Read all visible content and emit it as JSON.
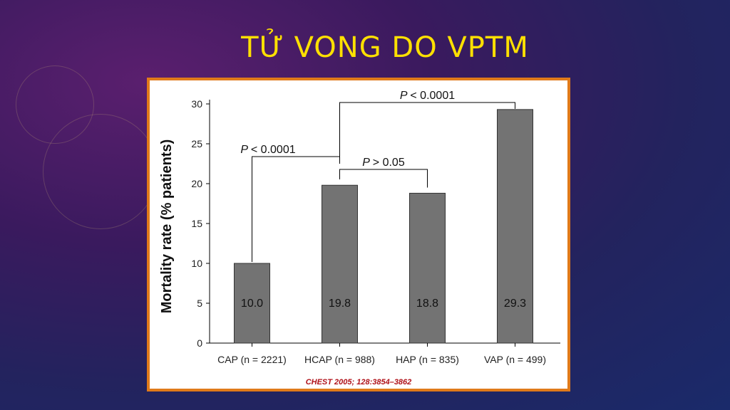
{
  "slide": {
    "title": "TỬ VONG DO VPTM",
    "citation": "CHEST 2005; 128:3854–3862"
  },
  "colors": {
    "title": "#ffe000",
    "frame_border": "#e07a1a",
    "bar_fill": "#737373",
    "citation": "#b0121a"
  },
  "chart_data": {
    "type": "bar",
    "title": "",
    "xlabel": "",
    "ylabel": "Mortality rate (% patients)",
    "ylim": [
      0,
      30
    ],
    "yticks": [
      0,
      5,
      10,
      15,
      20,
      25,
      30
    ],
    "categories": [
      "CAP (n = 2221)",
      "HCAP (n = 988)",
      "HAP (n = 835)",
      "VAP (n = 499)"
    ],
    "values": [
      10.0,
      19.8,
      18.8,
      29.3
    ],
    "value_labels": [
      "10.0",
      "19.8",
      "18.8",
      "29.3"
    ],
    "grid": false,
    "legend": "none",
    "comparisons": [
      {
        "from": 1,
        "to": 3,
        "label": "< 0.0001",
        "italic_prefix": "P"
      },
      {
        "from": 0,
        "to": 1,
        "label": "< 0.0001",
        "italic_prefix": "P"
      },
      {
        "from": 1,
        "to": 2,
        "label": "> 0.05",
        "italic_prefix": "P"
      }
    ]
  }
}
